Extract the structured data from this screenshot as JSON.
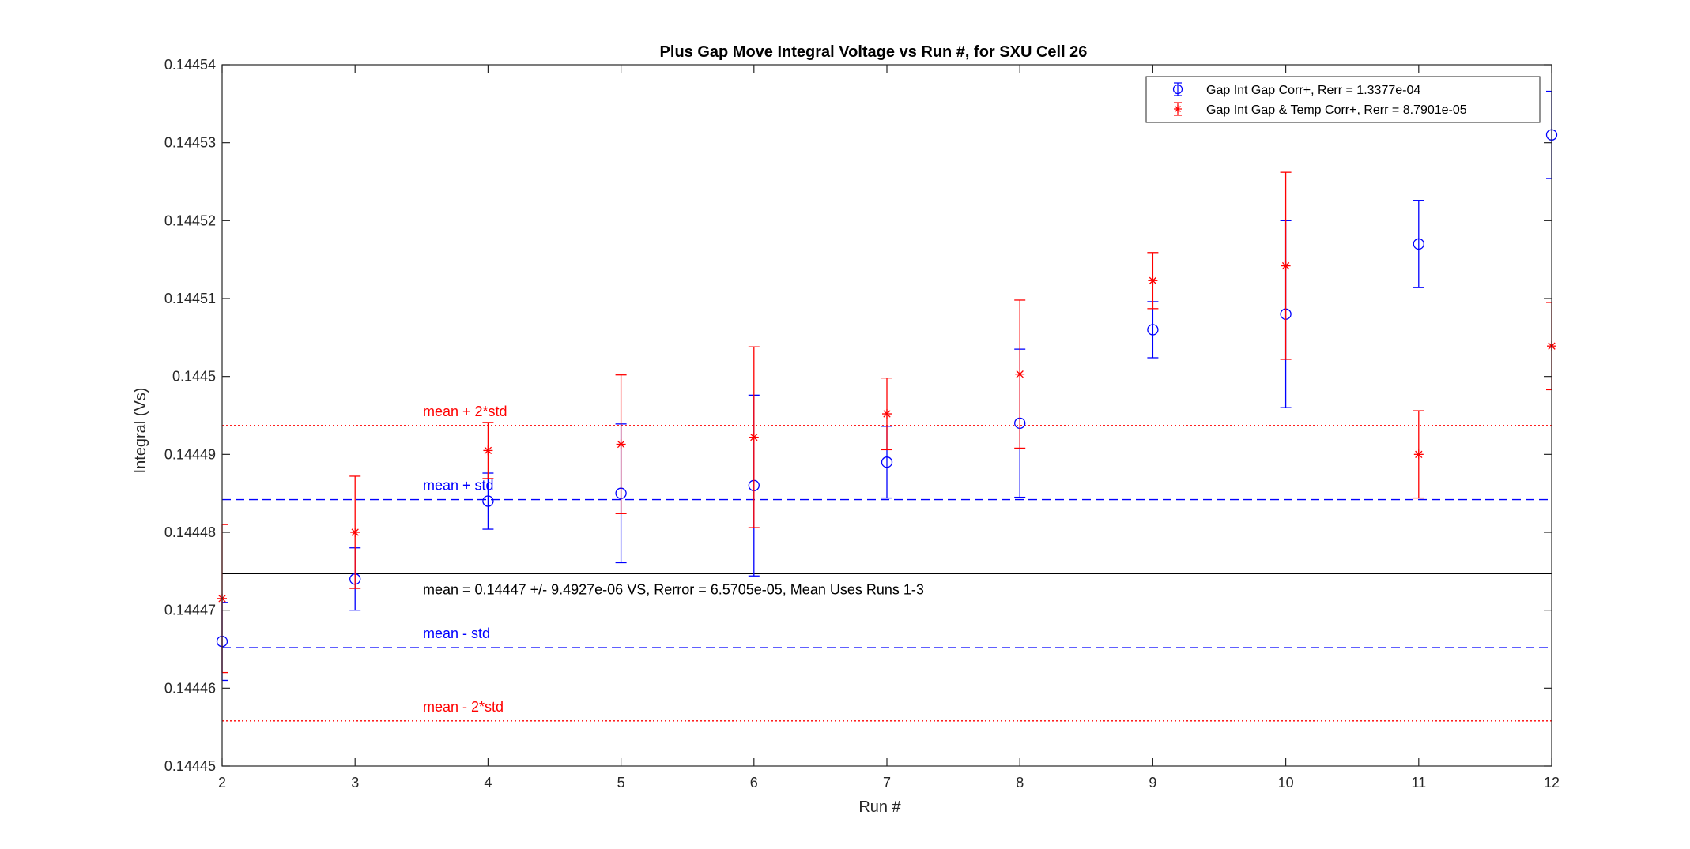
{
  "chart_data": {
    "type": "scatter",
    "title": "Plus Gap Move Integral Voltage vs Run #, for SXU Cell 26",
    "xlabel": "Run #",
    "ylabel": "Integral (Vs)",
    "xlim": [
      2,
      12
    ],
    "ylim": [
      0.14445,
      0.14454
    ],
    "xticks": [
      2,
      3,
      4,
      5,
      6,
      7,
      8,
      9,
      10,
      11,
      12
    ],
    "yticks": [
      "0.14445",
      "0.14446",
      "0.14447",
      "0.14448",
      "0.14449",
      "0.1445",
      "0.14451",
      "0.14452",
      "0.14453",
      "0.14454"
    ],
    "grid": false,
    "legend_position": "top-right",
    "series": [
      {
        "name": "Gap Int Gap Corr+, Rerr = 1.3377e-04",
        "color": "#0000ff",
        "marker": "circle",
        "x": [
          2,
          3,
          4,
          5,
          6,
          7,
          8,
          9,
          10,
          11,
          12
        ],
        "y": [
          0.144466,
          0.144474,
          0.144484,
          0.144485,
          0.144486,
          0.144489,
          0.144494,
          0.144506,
          0.144508,
          0.144517,
          0.144531
        ],
        "err": [
          5e-06,
          4e-06,
          3.6e-06,
          8.9e-06,
          1.16e-05,
          4.6e-06,
          9.5e-06,
          3.6e-06,
          1.2e-05,
          5.6e-06,
          5.6e-06
        ]
      },
      {
        "name": "Gap Int Gap & Temp  Corr+, Rerr = 8.7901e-05",
        "color": "#ff0000",
        "marker": "asterisk",
        "x": [
          2,
          3,
          4,
          5,
          6,
          7,
          8,
          9,
          10,
          11,
          12
        ],
        "y": [
          0.1444715,
          0.14448,
          0.1444905,
          0.1444913,
          0.1444922,
          0.1444952,
          0.1445003,
          0.1445123,
          0.1445142,
          0.14449,
          0.1445039
        ],
        "err": [
          9.5e-06,
          7.2e-06,
          3.6e-06,
          8.9e-06,
          1.16e-05,
          4.6e-06,
          9.5e-06,
          3.6e-06,
          1.2e-05,
          5.6e-06,
          5.6e-06
        ]
      }
    ],
    "reference_lines": [
      {
        "label": "mean + 2*std",
        "y": 0.1444937,
        "style": "dotted",
        "color": "#ff0000"
      },
      {
        "label": "mean + std",
        "y": 0.1444842,
        "style": "dashed",
        "color": "#0000ff"
      },
      {
        "label": "",
        "y": 0.1444747,
        "style": "solid",
        "color": "#000000"
      },
      {
        "label": "mean - std",
        "y": 0.1444652,
        "style": "dashed",
        "color": "#0000ff"
      },
      {
        "label": "mean - 2*std",
        "y": 0.1444558,
        "style": "dotted",
        "color": "#ff0000"
      }
    ],
    "annotation": "mean = 0.14447 +/- 9.4927e-06 VS, Rerror = 6.5705e-05, Mean Uses Runs 1-3"
  }
}
